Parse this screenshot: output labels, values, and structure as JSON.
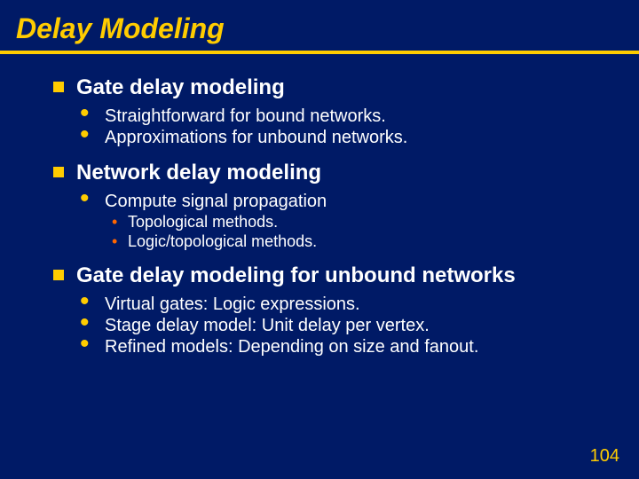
{
  "slide": {
    "background_color": "#001a66",
    "title": "Delay Modeling",
    "title_color": "#ffcc00",
    "title_fontsize": 32,
    "rule_color": "#ffcc00",
    "l1_bullet_color": "#ffcc00",
    "l1_color": "#ffffff",
    "l1_fontsize": 24,
    "l2_bullet_color": "#ffcc00",
    "l2_color": "#ffffff",
    "l2_fontsize": 20,
    "l3_bullet_color": "#ff6600",
    "l3_color": "#ffffff",
    "l3_fontsize": 18,
    "pagenum_color": "#ffcc00",
    "pagenum_fontsize": 20,
    "page_number": "104",
    "items": [
      {
        "text": "Gate delay modeling",
        "sub": [
          {
            "text": "Straightforward for bound networks."
          },
          {
            "text": "Approximations for unbound networks."
          }
        ]
      },
      {
        "text": "Network delay modeling",
        "sub": [
          {
            "text": "Compute signal propagation",
            "sub": [
              {
                "text": "Topological methods."
              },
              {
                "text": "Logic/topological methods."
              }
            ]
          }
        ]
      },
      {
        "text": "Gate delay modeling for unbound networks",
        "sub": [
          {
            "text": "Virtual gates: Logic expressions."
          },
          {
            "text": "Stage delay model: Unit delay per vertex."
          },
          {
            "text": "Refined models: Depending on size and fanout."
          }
        ]
      }
    ]
  }
}
